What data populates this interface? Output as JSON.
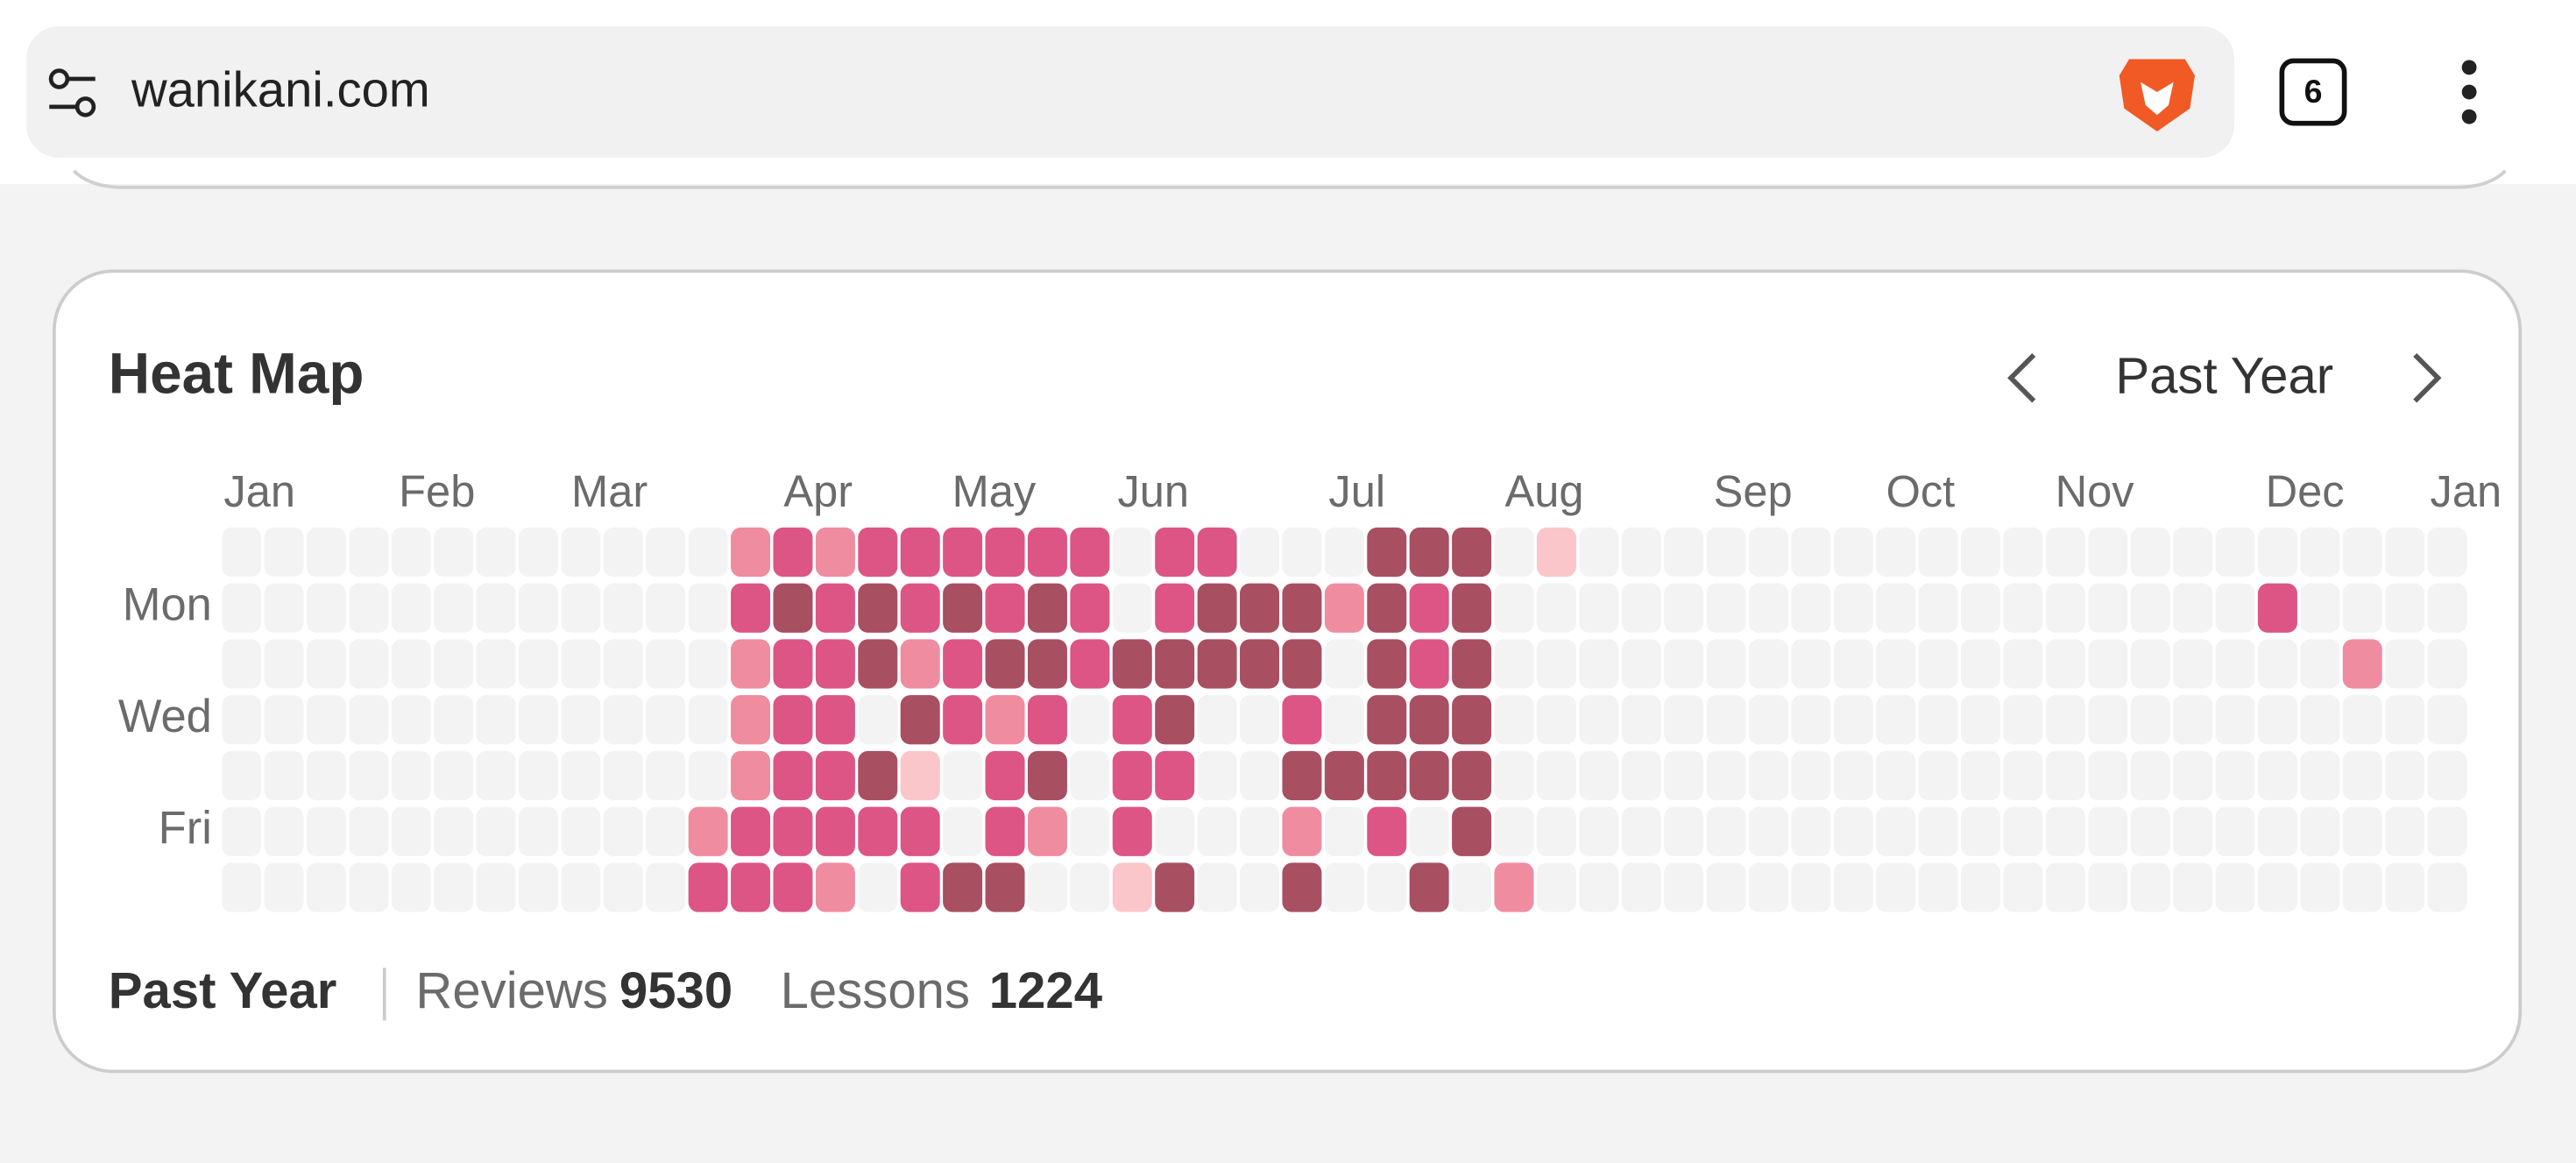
{
  "browser": {
    "url": "wanikani.com",
    "tab_count": 6
  },
  "heatmap": {
    "title": "Heat Map",
    "period": "Past Year",
    "months": [
      "Jan",
      "Feb",
      "Mar",
      "Apr",
      "May",
      "Jun",
      "Jul",
      "Aug",
      "Sep",
      "Oct",
      "Nov",
      "Dec",
      "Jan"
    ],
    "weekdays": [
      "Mon",
      "Wed",
      "Fri"
    ],
    "level_colors": [
      "#f3f3f3",
      "#fbc6c9",
      "#f08ca0",
      "#dc5585",
      "#a94f62"
    ],
    "days": [
      [
        0,
        0,
        0,
        0,
        0,
        0,
        0,
        0,
        0,
        0,
        0,
        0,
        2,
        3,
        2,
        3,
        3,
        3,
        3,
        3,
        3,
        0,
        3,
        3,
        0,
        0,
        0,
        4,
        4,
        4,
        0,
        1,
        0,
        0,
        0,
        0,
        0,
        0,
        0,
        0,
        0,
        0,
        0,
        0,
        0,
        0,
        0,
        0,
        0,
        0,
        0,
        0,
        0
      ],
      [
        0,
        0,
        0,
        0,
        0,
        0,
        0,
        0,
        0,
        0,
        0,
        0,
        3,
        4,
        3,
        4,
        3,
        4,
        3,
        4,
        3,
        0,
        3,
        4,
        4,
        4,
        2,
        4,
        3,
        4,
        0,
        0,
        0,
        0,
        0,
        0,
        0,
        0,
        0,
        0,
        0,
        0,
        0,
        0,
        0,
        0,
        0,
        0,
        3,
        0,
        0,
        0,
        0
      ],
      [
        0,
        0,
        0,
        0,
        0,
        0,
        0,
        0,
        0,
        0,
        0,
        0,
        2,
        3,
        3,
        4,
        2,
        3,
        4,
        4,
        3,
        4,
        4,
        4,
        4,
        4,
        0,
        4,
        3,
        4,
        0,
        0,
        0,
        0,
        0,
        0,
        0,
        0,
        0,
        0,
        0,
        0,
        0,
        0,
        0,
        0,
        0,
        0,
        0,
        0,
        2,
        0,
        0
      ],
      [
        0,
        0,
        0,
        0,
        0,
        0,
        0,
        0,
        0,
        0,
        0,
        0,
        2,
        3,
        3,
        0,
        4,
        3,
        2,
        3,
        0,
        3,
        4,
        0,
        0,
        3,
        0,
        4,
        4,
        4,
        0,
        0,
        0,
        0,
        0,
        0,
        0,
        0,
        0,
        0,
        0,
        0,
        0,
        0,
        0,
        0,
        0,
        0,
        0,
        0,
        0,
        0,
        0
      ],
      [
        0,
        0,
        0,
        0,
        0,
        0,
        0,
        0,
        0,
        0,
        0,
        0,
        2,
        3,
        3,
        4,
        1,
        0,
        3,
        4,
        0,
        3,
        3,
        0,
        0,
        4,
        4,
        4,
        4,
        4,
        0,
        0,
        0,
        0,
        0,
        0,
        0,
        0,
        0,
        0,
        0,
        0,
        0,
        0,
        0,
        0,
        0,
        0,
        0,
        0,
        0,
        0,
        0
      ],
      [
        0,
        0,
        0,
        0,
        0,
        0,
        0,
        0,
        0,
        0,
        0,
        2,
        3,
        3,
        3,
        3,
        3,
        0,
        3,
        2,
        0,
        3,
        0,
        0,
        0,
        2,
        0,
        3,
        0,
        4,
        0,
        0,
        0,
        0,
        0,
        0,
        0,
        0,
        0,
        0,
        0,
        0,
        0,
        0,
        0,
        0,
        0,
        0,
        0,
        0,
        0,
        0,
        0
      ],
      [
        0,
        0,
        0,
        0,
        0,
        0,
        0,
        0,
        0,
        0,
        0,
        3,
        3,
        3,
        2,
        0,
        3,
        4,
        4,
        0,
        0,
        1,
        4,
        0,
        0,
        4,
        0,
        0,
        4,
        0,
        2,
        0,
        0,
        0,
        0,
        0,
        0,
        0,
        0,
        0,
        0,
        0,
        0,
        0,
        0,
        0,
        0,
        0,
        0,
        0,
        0,
        0,
        0
      ]
    ]
  },
  "summary": {
    "period": "Past Year",
    "reviews_label": "Reviews",
    "reviews": 9530,
    "lessons_label": "Lessons",
    "lessons": 1224
  }
}
